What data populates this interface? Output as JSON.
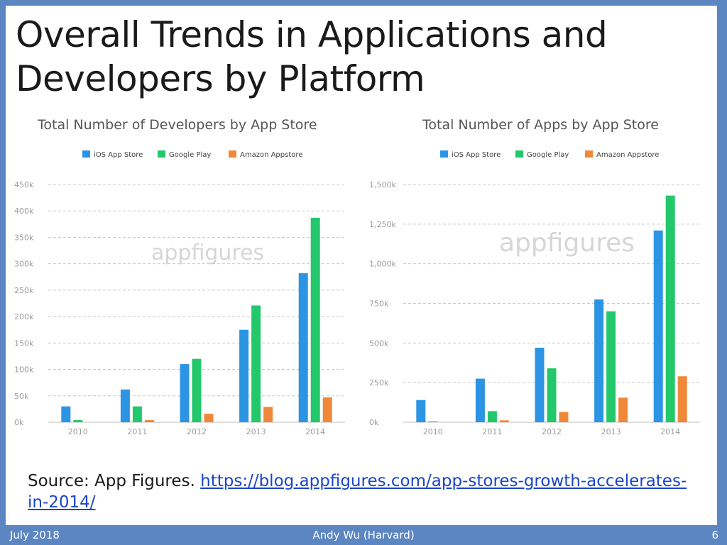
{
  "slide": {
    "title": "Overall Trends in Applications and Developers by Platform",
    "source_prefix": "Source: App Figures.",
    "source_link": "https://blog.appfigures.com/app-stores-growth-accelerates-in-2014/"
  },
  "footer": {
    "date": "July 2018",
    "author": "Andy Wu (Harvard)",
    "page": "6"
  },
  "colors": {
    "ios": "#2b95e3",
    "google": "#23c86a",
    "amazon": "#f0883a",
    "grid": "#c8c8c8",
    "axis_text": "#9a9a9a",
    "chart_title": "#555555"
  },
  "chart_data": [
    {
      "type": "bar",
      "title": "Total Number of Developers by App Store",
      "watermark": "appfigures",
      "categories": [
        "2010",
        "2011",
        "2012",
        "2013",
        "2014"
      ],
      "series": [
        {
          "name": "iOS App Store",
          "values": [
            30000,
            62000,
            110000,
            175000,
            282000
          ]
        },
        {
          "name": "Google Play",
          "values": [
            4000,
            30000,
            120000,
            221000,
            387000
          ]
        },
        {
          "name": "Amazon Appstore",
          "values": [
            0,
            4000,
            16000,
            29000,
            47000
          ]
        }
      ],
      "ylim": [
        0,
        450000
      ],
      "yticks": [
        0,
        50000,
        100000,
        150000,
        200000,
        250000,
        300000,
        350000,
        400000,
        450000
      ],
      "ytick_labels": [
        "0k",
        "50k",
        "100k",
        "150k",
        "200k",
        "250k",
        "300k",
        "350k",
        "400k",
        "450k"
      ],
      "grid": true,
      "legend": "top-center"
    },
    {
      "type": "bar",
      "title": "Total Number of Apps by App Store",
      "watermark": "appfigures",
      "categories": [
        "2010",
        "2011",
        "2012",
        "2013",
        "2014"
      ],
      "series": [
        {
          "name": "iOS App Store",
          "values": [
            140000,
            275000,
            470000,
            775000,
            1210000
          ]
        },
        {
          "name": "Google Play",
          "values": [
            5000,
            70000,
            340000,
            700000,
            1430000
          ]
        },
        {
          "name": "Amazon Appstore",
          "values": [
            0,
            12000,
            65000,
            155000,
            290000
          ]
        }
      ],
      "ylim": [
        0,
        1500000
      ],
      "yticks": [
        0,
        250000,
        500000,
        750000,
        1000000,
        1250000,
        1500000
      ],
      "ytick_labels": [
        "0k",
        "250k",
        "500k",
        "750k",
        "1,000k",
        "1,250k",
        "1,500k"
      ],
      "grid": true,
      "legend": "top-center"
    }
  ]
}
